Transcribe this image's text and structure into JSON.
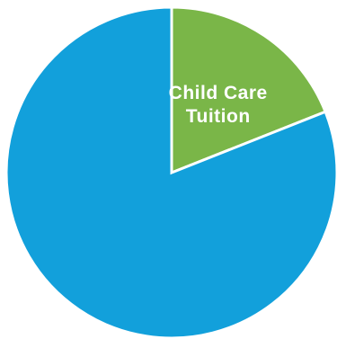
{
  "chart_data": {
    "type": "pie",
    "title": "",
    "slices": [
      {
        "label": "Child Care Tuition",
        "value": 19,
        "color": "#7ab648",
        "label_lines": [
          "Child Care",
          "Tuition"
        ]
      },
      {
        "label": "",
        "value": 81,
        "color": "#12a0db",
        "label_lines": []
      }
    ],
    "start_angle_deg": 0,
    "direction": "clockwise",
    "legend": "none"
  }
}
